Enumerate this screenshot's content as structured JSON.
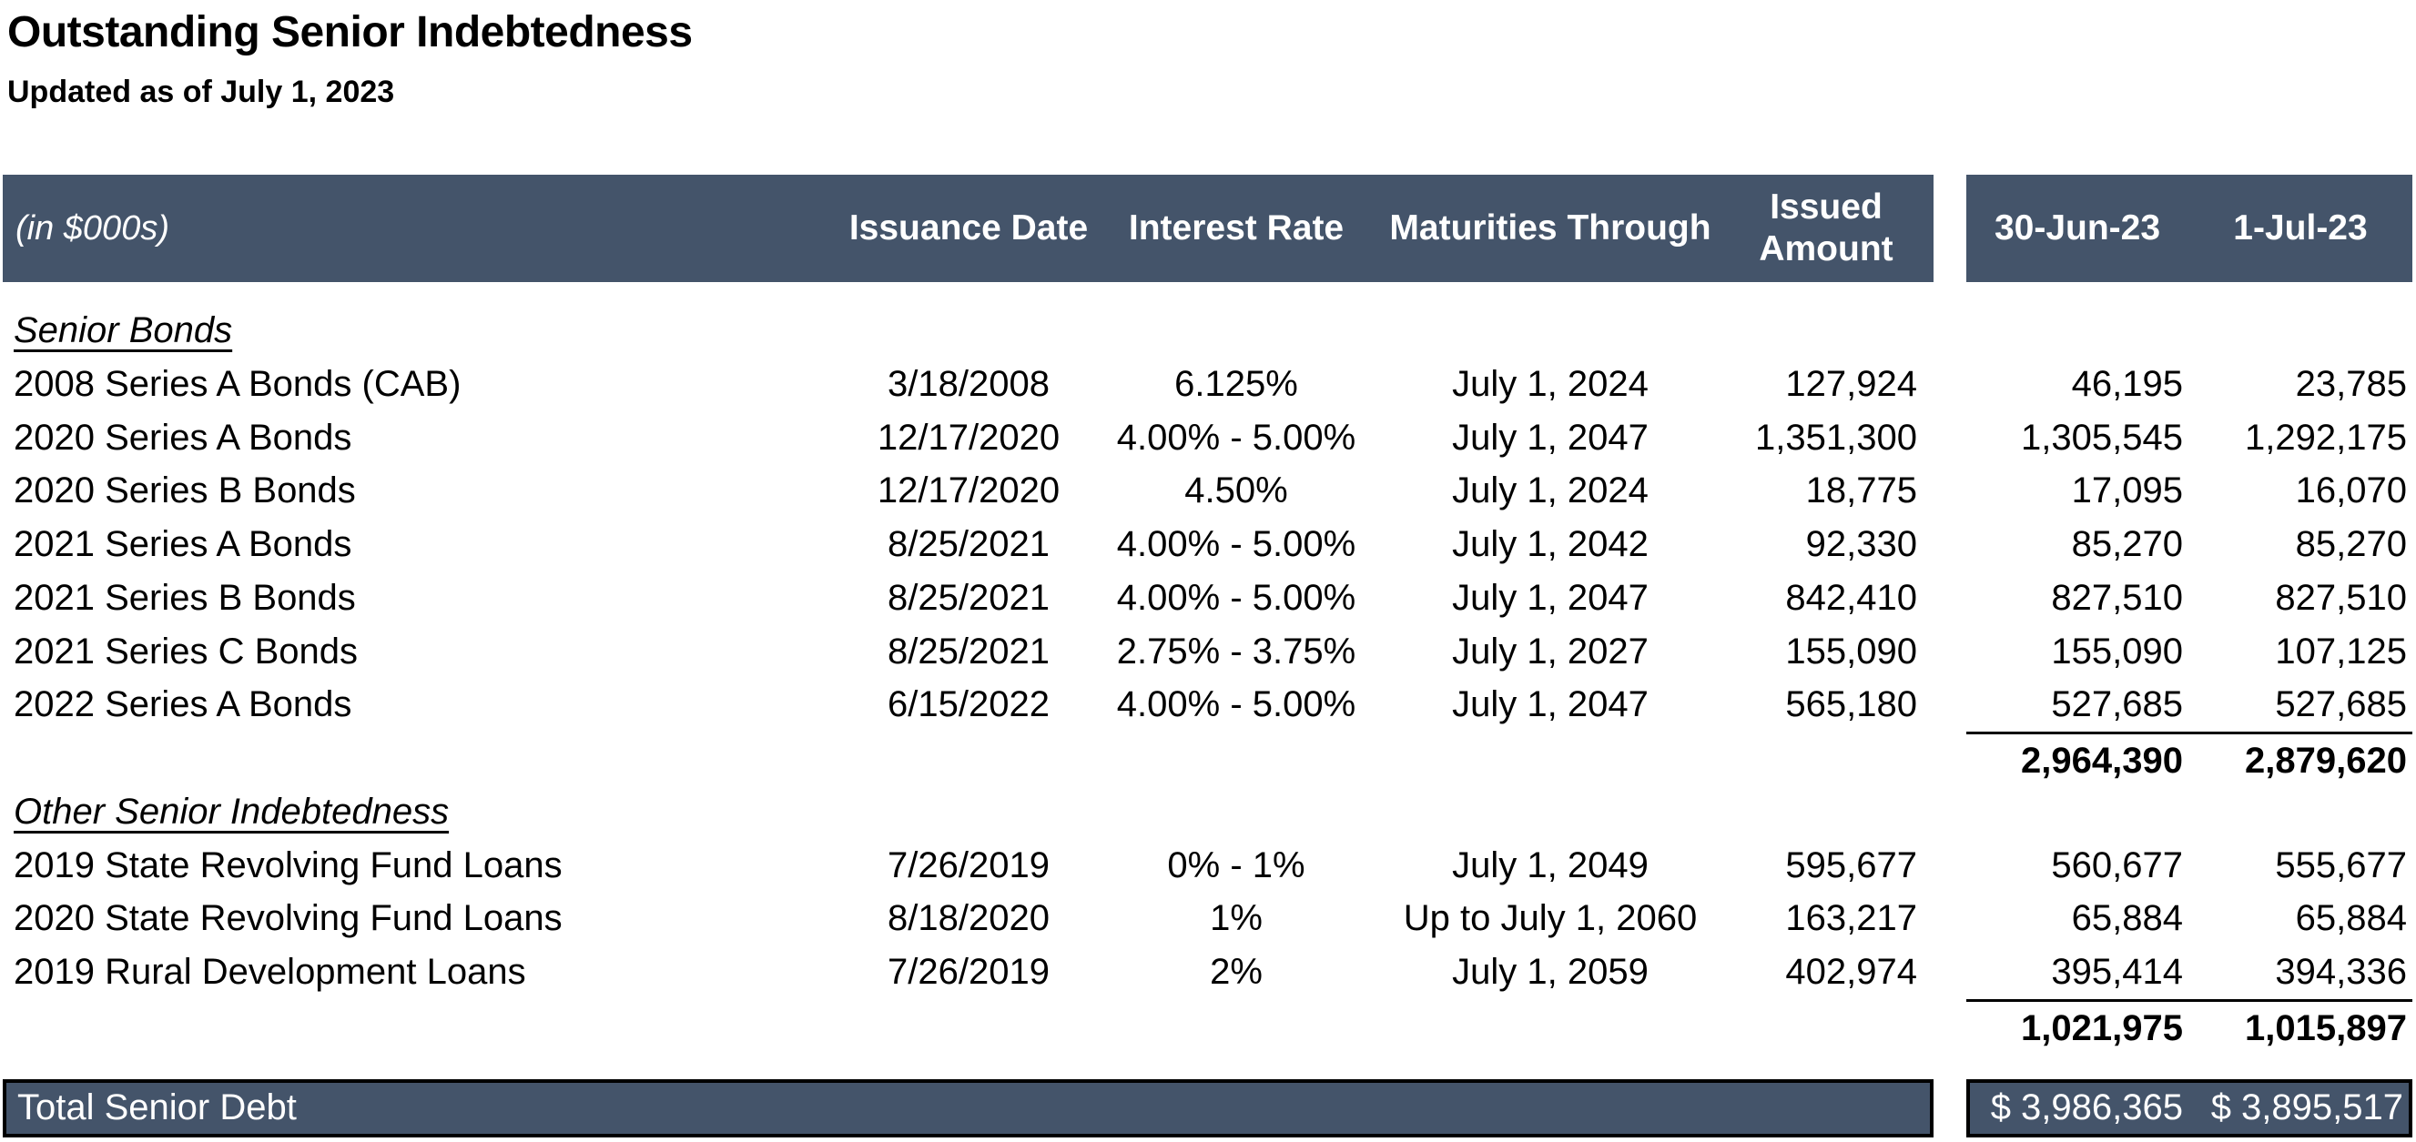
{
  "page": {
    "title": "Outstanding Senior Indebtedness",
    "subtitle": "Updated as of July 1, 2023"
  },
  "colors": {
    "band_background": "#44546A",
    "band_text": "#FFFFFF",
    "body_text": "#000000"
  },
  "table": {
    "headers": {
      "unit": "(in $000s)",
      "issuance_date": "Issuance Date",
      "interest_rate": "Interest Rate",
      "maturities": "Maturities Through",
      "issued_line1": "Issued",
      "issued_line2": "Amount",
      "col_jun": "30-Jun-23",
      "col_jul": "1-Jul-23"
    },
    "sections": [
      {
        "label": "Senior Bonds",
        "rows": [
          {
            "name": "2008 Series A Bonds (CAB)",
            "issuance": "3/18/2008",
            "rate": "6.125%",
            "maturity": "July 1, 2024",
            "issued": "127,924",
            "jun": "46,195",
            "jul": "23,785"
          },
          {
            "name": "2020 Series A Bonds",
            "issuance": "12/17/2020",
            "rate": "4.00% - 5.00%",
            "maturity": "July 1, 2047",
            "issued": "1,351,300",
            "jun": "1,305,545",
            "jul": "1,292,175"
          },
          {
            "name": "2020 Series B Bonds",
            "issuance": "12/17/2020",
            "rate": "4.50%",
            "maturity": "July 1, 2024",
            "issued": "18,775",
            "jun": "17,095",
            "jul": "16,070"
          },
          {
            "name": "2021 Series A Bonds",
            "issuance": "8/25/2021",
            "rate": "4.00% - 5.00%",
            "maturity": "July 1, 2042",
            "issued": "92,330",
            "jun": "85,270",
            "jul": "85,270"
          },
          {
            "name": "2021 Series B Bonds",
            "issuance": "8/25/2021",
            "rate": "4.00% - 5.00%",
            "maturity": "July 1, 2047",
            "issued": "842,410",
            "jun": "827,510",
            "jul": "827,510"
          },
          {
            "name": "2021 Series C Bonds",
            "issuance": "8/25/2021",
            "rate": "2.75% - 3.75%",
            "maturity": "July 1, 2027",
            "issued": "155,090",
            "jun": "155,090",
            "jul": "107,125"
          },
          {
            "name": "2022 Series A Bonds",
            "issuance": "6/15/2022",
            "rate": "4.00% - 5.00%",
            "maturity": "July 1, 2047",
            "issued": "565,180",
            "jun": "527,685",
            "jul": "527,685"
          }
        ],
        "subtotal": {
          "jun": "2,964,390",
          "jul": "2,879,620"
        }
      },
      {
        "label": "Other Senior Indebtedness",
        "rows": [
          {
            "name": "2019 State Revolving Fund Loans",
            "issuance": "7/26/2019",
            "rate": "0% - 1%",
            "maturity": "July 1, 2049",
            "issued": "595,677",
            "jun": "560,677",
            "jul": "555,677"
          },
          {
            "name": "2020 State Revolving Fund Loans",
            "issuance": "8/18/2020",
            "rate": "1%",
            "maturity": "Up to July 1, 2060",
            "issued": "163,217",
            "jun": "65,884",
            "jul": "65,884"
          },
          {
            "name": "2019 Rural Development Loans",
            "issuance": "7/26/2019",
            "rate": "2%",
            "maturity": "July 1, 2059",
            "issued": "402,974",
            "jun": "395,414",
            "jul": "394,336"
          }
        ],
        "subtotal": {
          "jun": "1,021,975",
          "jul": "1,015,897"
        }
      }
    ],
    "total": {
      "label": "Total Senior Debt",
      "jun": "$ 3,986,365",
      "jul": "$ 3,895,517"
    }
  }
}
